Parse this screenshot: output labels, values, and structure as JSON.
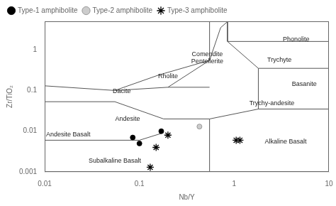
{
  "chart_data": {
    "type": "scatter",
    "xlabel": "Nb/Y",
    "ylabel": "Zr/TiO₂",
    "log": true,
    "grid": false,
    "legend": "upper left",
    "xlim": [
      0.01,
      10
    ],
    "ylim": [
      0.001,
      5
    ],
    "xticks": [
      0.01,
      0.1,
      1,
      10
    ],
    "yticks": [
      0.001,
      0.01,
      0.1,
      1
    ],
    "series": [
      {
        "name": "Type-1 amphibolite",
        "color": "#000000",
        "marker": "circle",
        "values": [
          [
            0.085,
            0.007
          ],
          [
            0.1,
            0.005
          ],
          [
            0.17,
            0.01
          ]
        ]
      },
      {
        "name": "Type-2 amphibolite",
        "color": "#cccccc",
        "marker": "circle",
        "values": [
          [
            0.43,
            0.013
          ]
        ]
      },
      {
        "name": "Type-3 amphibolite",
        "color": "#000000",
        "marker": "star",
        "values": [
          [
            0.15,
            0.004
          ],
          [
            0.2,
            0.008
          ],
          [
            0.13,
            0.0013
          ],
          [
            1.05,
            0.006
          ],
          [
            1.15,
            0.006
          ]
        ]
      },
      {
        "type": "line",
        "color": "#555555",
        "values": [
          [
            0.01,
            0.006
          ],
          [
            0.1,
            0.006
          ],
          [
            0.175,
            0.009
          ]
        ]
      },
      {
        "type": "line",
        "color": "#555555",
        "values": [
          [
            0.01,
            0.053
          ],
          [
            0.055,
            0.053
          ],
          [
            0.18,
            0.02
          ],
          [
            0.55,
            0.02
          ]
        ]
      },
      {
        "type": "line",
        "color": "#555555",
        "values": [
          [
            0.01,
            0.13
          ],
          [
            0.055,
            0.1
          ],
          [
            0.2,
            0.12
          ],
          [
            0.55,
            0.12
          ]
        ]
      },
      {
        "type": "line",
        "color": "#555555",
        "values": [
          [
            0.055,
            0.1
          ],
          [
            0.16,
            0.24
          ],
          [
            0.55,
            0.55
          ]
        ]
      },
      {
        "type": "line",
        "color": "#555555",
        "values": [
          [
            0.2,
            0.12
          ],
          [
            0.55,
            0.55
          ],
          [
            0.55,
            5.0
          ]
        ]
      },
      {
        "type": "line",
        "color": "#555555",
        "values": [
          [
            0.55,
            0.55
          ],
          [
            0.72,
            3.5
          ],
          [
            0.85,
            4.9
          ]
        ]
      },
      {
        "type": "line",
        "color": "#555555",
        "values": [
          [
            0.55,
            5.0
          ],
          [
            0.85,
            4.9
          ],
          [
            0.85,
            1.6
          ],
          [
            1.8,
            0.35
          ],
          [
            10,
            0.35
          ]
        ]
      },
      {
        "type": "line",
        "color": "#555555",
        "values": [
          [
            0.85,
            1.6
          ],
          [
            10,
            1.6
          ]
        ]
      },
      {
        "type": "line",
        "color": "#555555",
        "values": [
          [
            0.55,
            0.02
          ],
          [
            1.8,
            0.035
          ],
          [
            1.8,
            0.35
          ]
        ]
      },
      {
        "type": "line",
        "color": "#555555",
        "values": [
          [
            0.55,
            0.001
          ],
          [
            0.55,
            0.02
          ]
        ]
      },
      {
        "type": "line",
        "color": "#555555",
        "values": [
          [
            1.8,
            0.035
          ],
          [
            10,
            0.035
          ]
        ]
      }
    ],
    "annotations": [
      {
        "text": "Phonolite",
        "x": 4.5,
        "y": 1.8
      },
      {
        "text": "Comendite\nPentellerite",
        "x": 0.52,
        "y": 0.62
      },
      {
        "text": "Rholite",
        "x": 0.2,
        "y": 0.22
      },
      {
        "text": "Dacite",
        "x": 0.065,
        "y": 0.095
      },
      {
        "text": "Andesite",
        "x": 0.075,
        "y": 0.02
      },
      {
        "text": "Andesite Basalt",
        "x": 0.013,
        "y": 0.0082
      },
      {
        "text": "Subalkaline Basalt",
        "x": 0.055,
        "y": 0.00185
      },
      {
        "text": "Trychyte",
        "x": 3.0,
        "y": 0.55
      },
      {
        "text": "Trychy-andesite",
        "x": 2.5,
        "y": 0.048
      },
      {
        "text": "Basanite",
        "x": 5.5,
        "y": 0.14
      },
      {
        "text": "Alkaline Basalt",
        "x": 3.5,
        "y": 0.0055
      }
    ]
  }
}
